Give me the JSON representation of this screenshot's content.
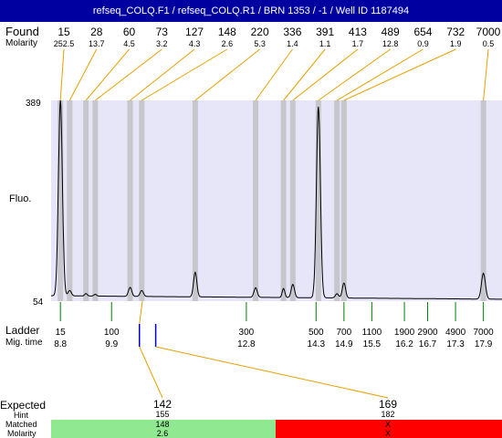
{
  "header": {
    "title": "refseq_COLQ.F1 / refseq_COLQ.R1 / BRN 1353 / -1 / Well ID 1187494"
  },
  "labels": {
    "found": "Found",
    "molarity": "Molarity",
    "fluo": "Fluo.",
    "ladder": "Ladder",
    "mig_time": "Mig. time",
    "expected": "Expected",
    "hint": "Hint",
    "matched": "Matched",
    "molarity_bottom": "Molarity"
  },
  "colors": {
    "title_bar": "#0000a0",
    "plot_background": "#e6e6f8",
    "band": "#c6c6cc",
    "leader_line": "#e8a000",
    "ladder_tick": "#008000",
    "match_ok": "#90e890",
    "match_fail": "#ff0000",
    "marker_blue": "#0000d0"
  },
  "chart_data": {
    "type": "line",
    "title": "refseq_COLQ.F1 / refseq_COLQ.R1 / BRN 1353 / -1 / Well ID 1187494",
    "ylabel": "Fluo.",
    "y_ticks": [
      "389",
      "54"
    ],
    "ylim": [
      54,
      389
    ],
    "x_range_mig_time": [
      8.6,
      18.3
    ],
    "found": [
      {
        "size": "15",
        "molarity": "252.5",
        "mig_time": 8.8
      },
      {
        "size": "28",
        "molarity": "13.7",
        "mig_time": 9.0
      },
      {
        "size": "60",
        "molarity": "4.5",
        "mig_time": 9.35
      },
      {
        "size": "73",
        "molarity": "3.2",
        "mig_time": 9.55
      },
      {
        "size": "127",
        "molarity": "4.3",
        "mig_time": 10.3
      },
      {
        "size": "148",
        "molarity": "2.6",
        "mig_time": 10.55
      },
      {
        "size": "220",
        "molarity": "5.3",
        "mig_time": 11.7
      },
      {
        "size": "336",
        "molarity": "1.4",
        "mig_time": 13.0
      },
      {
        "size": "391",
        "molarity": "1.1",
        "mig_time": 13.6
      },
      {
        "size": "413",
        "molarity": "1.7",
        "mig_time": 13.8
      },
      {
        "size": "489",
        "molarity": "12.8",
        "mig_time": 14.35
      },
      {
        "size": "654",
        "molarity": "0.9",
        "mig_time": 14.75
      },
      {
        "size": "732",
        "molarity": "1.9",
        "mig_time": 14.9
      },
      {
        "size": "7000",
        "molarity": "0.5",
        "mig_time": 17.9
      }
    ],
    "ladder": [
      {
        "size": "15",
        "mig_time": "8.8"
      },
      {
        "size": "100",
        "mig_time": "9.9"
      },
      {
        "size": "300",
        "mig_time": "12.8"
      },
      {
        "size": "500",
        "mig_time": "14.3"
      },
      {
        "size": "700",
        "mig_time": "14.9"
      },
      {
        "size": "1100",
        "mig_time": "15.5"
      },
      {
        "size": "1900",
        "mig_time": "16.2"
      },
      {
        "size": "2900",
        "mig_time": "16.7"
      },
      {
        "size": "4900",
        "mig_time": "17.3"
      },
      {
        "size": "7000",
        "mig_time": "17.9"
      }
    ],
    "trace": {
      "baseline": 63,
      "peaks": [
        {
          "t": 8.8,
          "h": 389,
          "w": 0.06
        },
        {
          "t": 9.0,
          "h": 72,
          "w": 0.05
        },
        {
          "t": 9.35,
          "h": 67,
          "w": 0.04
        },
        {
          "t": 9.55,
          "h": 66,
          "w": 0.04
        },
        {
          "t": 10.3,
          "h": 78,
          "w": 0.05
        },
        {
          "t": 10.55,
          "h": 73,
          "w": 0.05
        },
        {
          "t": 11.7,
          "h": 104,
          "w": 0.05
        },
        {
          "t": 13.0,
          "h": 79,
          "w": 0.05
        },
        {
          "t": 13.6,
          "h": 78,
          "w": 0.04
        },
        {
          "t": 13.8,
          "h": 85,
          "w": 0.05
        },
        {
          "t": 14.35,
          "h": 382,
          "w": 0.06
        },
        {
          "t": 14.75,
          "h": 70,
          "w": 0.05
        },
        {
          "t": 14.9,
          "h": 88,
          "w": 0.05
        },
        {
          "t": 17.9,
          "h": 106,
          "w": 0.06
        }
      ]
    },
    "markers": [
      {
        "mig_time": 10.5,
        "expected": "142"
      },
      {
        "mig_time": 10.85,
        "expected": "169"
      }
    ],
    "expected": [
      {
        "value": "142",
        "hint": "155",
        "matched": "148",
        "molarity": "2.6",
        "status": "matched"
      },
      {
        "value": "169",
        "hint": "182",
        "matched": "X",
        "molarity": "X",
        "status": "not-matched"
      }
    ]
  }
}
